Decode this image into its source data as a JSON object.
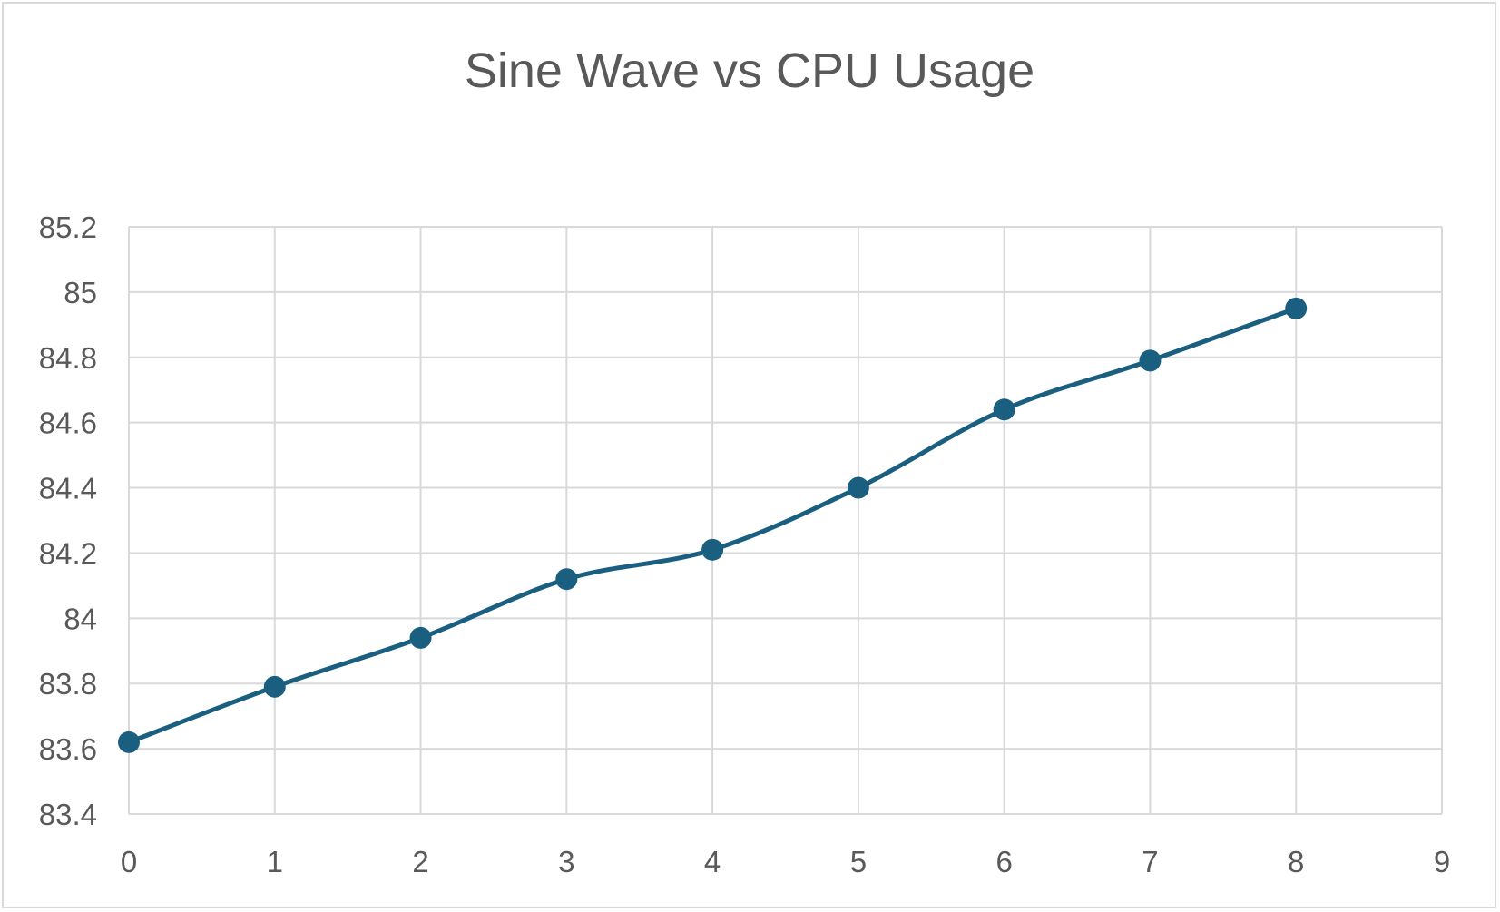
{
  "chart_data": {
    "type": "scatter",
    "mode": "lines+markers",
    "smooth": true,
    "title": "Sine Wave vs CPU Usage",
    "xlabel": "",
    "ylabel": "",
    "xlim": [
      0,
      9
    ],
    "ylim": [
      83.4,
      85.2
    ],
    "x_ticks": [
      "0",
      "1",
      "2",
      "3",
      "4",
      "5",
      "6",
      "7",
      "8",
      "9"
    ],
    "y_ticks": [
      "83.4",
      "83.6",
      "83.8",
      "84",
      "84.2",
      "84.4",
      "84.6",
      "84.8",
      "85",
      "85.2"
    ],
    "grid": true,
    "legend": "none",
    "series": [
      {
        "color": "#1a5f80",
        "x": [
          0,
          1,
          2,
          3,
          4,
          5,
          6,
          7,
          8
        ],
        "y": [
          83.62,
          83.79,
          83.94,
          84.12,
          84.21,
          84.4,
          84.64,
          84.79,
          84.95
        ]
      }
    ]
  }
}
